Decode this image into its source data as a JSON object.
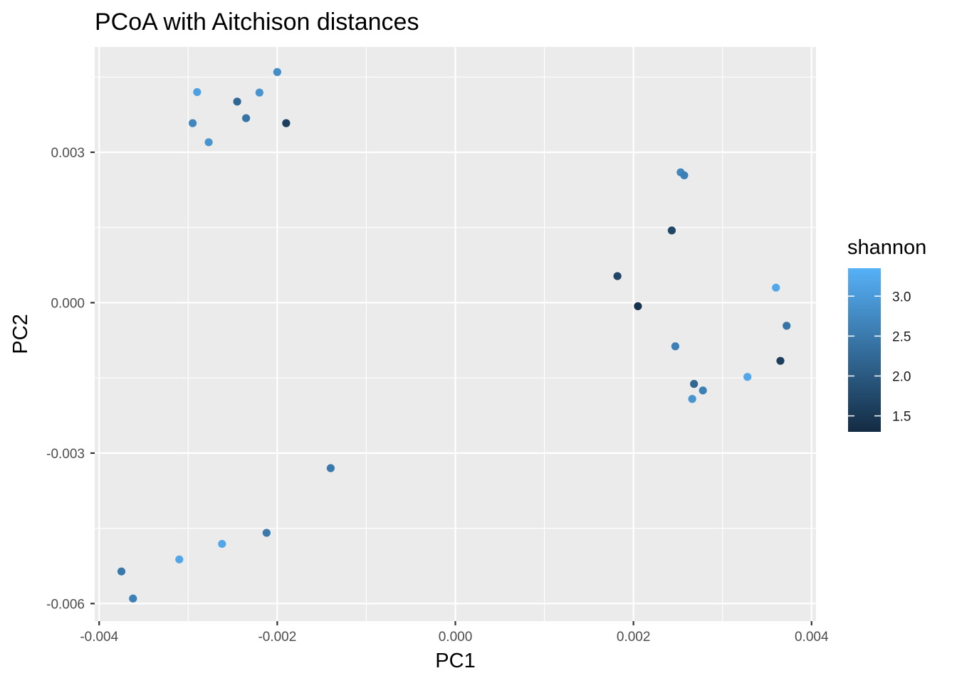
{
  "chart_data": {
    "type": "scatter",
    "title": "PCoA with Aitchison distances",
    "xlabel": "PC1",
    "ylabel": "PC2",
    "xlim": [
      -0.00405,
      0.00405
    ],
    "ylim": [
      -0.00635,
      0.0051
    ],
    "x_ticks": [
      -0.004,
      -0.002,
      0.0,
      0.002,
      0.004
    ],
    "x_tick_labels": [
      "-0.004",
      "-0.002",
      "0.000",
      "0.002",
      "0.004"
    ],
    "y_ticks": [
      -0.006,
      -0.003,
      0.0,
      0.003
    ],
    "y_tick_labels": [
      "-0.006",
      "-0.003",
      "0.000",
      "0.003"
    ],
    "grid": true,
    "legend": {
      "title": "shannon",
      "placement": "right",
      "type": "colorbar",
      "range": [
        1.3,
        3.35
      ],
      "breaks": [
        1.5,
        2.0,
        2.5,
        3.0
      ],
      "break_labels": [
        "1.5",
        "2.0",
        "2.5",
        "3.0"
      ],
      "low_color": "#132B43",
      "high_color": "#56B1F7"
    },
    "points": [
      {
        "x": -0.002,
        "y": 0.0046,
        "shannon": 2.8
      },
      {
        "x": -0.0029,
        "y": 0.0042,
        "shannon": 3.1
      },
      {
        "x": -0.0022,
        "y": 0.00419,
        "shannon": 2.9
      },
      {
        "x": -0.00245,
        "y": 0.00401,
        "shannon": 2.2
      },
      {
        "x": -0.00235,
        "y": 0.00368,
        "shannon": 2.4
      },
      {
        "x": -0.00295,
        "y": 0.00358,
        "shannon": 2.7
      },
      {
        "x": -0.0019,
        "y": 0.00358,
        "shannon": 1.6
      },
      {
        "x": -0.00277,
        "y": 0.0032,
        "shannon": 2.9
      },
      {
        "x": -0.0014,
        "y": -0.0033,
        "shannon": 2.5
      },
      {
        "x": -0.00212,
        "y": -0.00459,
        "shannon": 2.5
      },
      {
        "x": -0.00262,
        "y": -0.00481,
        "shannon": 3.2
      },
      {
        "x": -0.0031,
        "y": -0.00512,
        "shannon": 3.2
      },
      {
        "x": -0.00375,
        "y": -0.00536,
        "shannon": 2.5
      },
      {
        "x": -0.00362,
        "y": -0.0059,
        "shannon": 2.6
      },
      {
        "x": 0.00253,
        "y": 0.0026,
        "shannon": 2.7
      },
      {
        "x": 0.00257,
        "y": 0.00254,
        "shannon": 2.6
      },
      {
        "x": 0.00243,
        "y": 0.00144,
        "shannon": 1.7
      },
      {
        "x": 0.00182,
        "y": 0.00053,
        "shannon": 1.7
      },
      {
        "x": 0.0036,
        "y": 0.0003,
        "shannon": 3.2
      },
      {
        "x": 0.00205,
        "y": -7e-05,
        "shannon": 1.4
      },
      {
        "x": 0.00372,
        "y": -0.00046,
        "shannon": 2.4
      },
      {
        "x": 0.00247,
        "y": -0.00087,
        "shannon": 2.6
      },
      {
        "x": 0.00365,
        "y": -0.00116,
        "shannon": 1.6
      },
      {
        "x": 0.00328,
        "y": -0.00148,
        "shannon": 3.2
      },
      {
        "x": 0.00268,
        "y": -0.00162,
        "shannon": 2.2
      },
      {
        "x": 0.00278,
        "y": -0.00175,
        "shannon": 2.6
      },
      {
        "x": 0.00266,
        "y": -0.00192,
        "shannon": 2.9
      }
    ]
  }
}
